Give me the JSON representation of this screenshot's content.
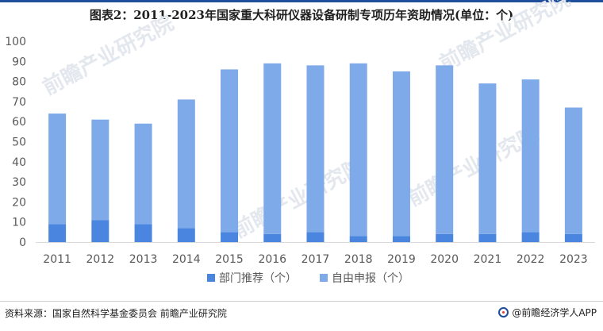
{
  "title": "图表2：2011-2023年国家重大科研仪器设备研制专项历年资助情况(单位：个)",
  "source": "资料来源：国家自然科学基金委员会 前瞻产业研究院",
  "brand": "@前瞻经济学人APP",
  "watermark": "前瞻产业研究院",
  "colors": {
    "dept": "#4a86e0",
    "self": "#7eaae9"
  },
  "chart_data": {
    "type": "bar",
    "stacked": true,
    "categories": [
      "2011",
      "2012",
      "2013",
      "2014",
      "2015",
      "2016",
      "2017",
      "2018",
      "2019",
      "2020",
      "2021",
      "2022",
      "2023"
    ],
    "series": [
      {
        "name": "部门推荐（个）",
        "values": [
          9,
          11,
          9,
          7,
          5,
          4,
          5,
          3,
          3,
          4,
          4,
          5,
          4
        ]
      },
      {
        "name": "自由申报（个）",
        "values": [
          55,
          50,
          50,
          64,
          81,
          85,
          83,
          86,
          82,
          84,
          75,
          76,
          63
        ]
      }
    ],
    "y_ticks": [
      "0",
      "10",
      "20",
      "30",
      "40",
      "50",
      "60",
      "70",
      "80",
      "90",
      "100"
    ],
    "ylim": [
      0,
      100
    ],
    "grid": false,
    "legend_position": "bottom"
  }
}
